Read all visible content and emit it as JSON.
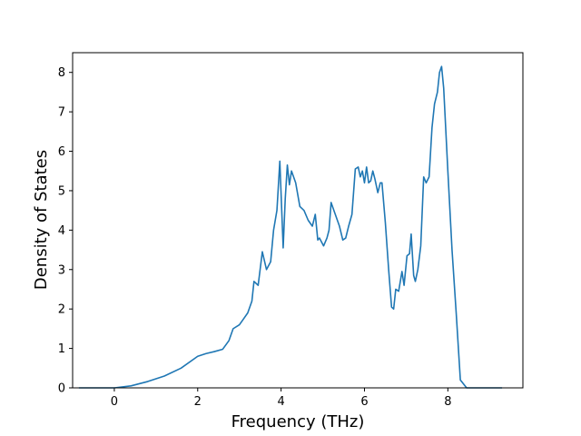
{
  "chart_data": {
    "type": "line",
    "title": "",
    "xlabel": "Frequency (THz)",
    "ylabel": "Density of States",
    "xlim": [
      -1.0,
      9.8
    ],
    "ylim": [
      0,
      8.5
    ],
    "xticks": [
      0,
      2,
      4,
      6,
      8
    ],
    "yticks": [
      0,
      1,
      2,
      3,
      4,
      5,
      6,
      7,
      8
    ],
    "grid": false,
    "legend": "none",
    "series": [
      {
        "color": "#1f77b4",
        "x": [
          -0.85,
          0.0,
          0.4,
          0.8,
          1.2,
          1.6,
          2.0,
          2.2,
          2.4,
          2.6,
          2.75,
          2.85,
          3.0,
          3.1,
          3.2,
          3.3,
          3.35,
          3.45,
          3.55,
          3.65,
          3.75,
          3.82,
          3.9,
          3.97,
          4.05,
          4.1,
          4.15,
          4.2,
          4.25,
          4.35,
          4.45,
          4.55,
          4.65,
          4.75,
          4.82,
          4.88,
          4.92,
          5.02,
          5.1,
          5.15,
          5.2,
          5.3,
          5.4,
          5.48,
          5.55,
          5.62,
          5.7,
          5.78,
          5.85,
          5.9,
          5.95,
          6.0,
          6.05,
          6.1,
          6.15,
          6.2,
          6.25,
          6.32,
          6.38,
          6.42,
          6.5,
          6.58,
          6.65,
          6.7,
          6.75,
          6.82,
          6.9,
          6.95,
          7.02,
          7.08,
          7.12,
          7.18,
          7.22,
          7.28,
          7.35,
          7.42,
          7.48,
          7.55,
          7.62,
          7.68,
          7.75,
          7.8,
          7.85,
          7.9,
          8.0,
          8.1,
          8.2,
          8.3,
          8.45,
          8.6,
          9.3
        ],
        "y": [
          0.0,
          0.0,
          0.05,
          0.16,
          0.3,
          0.5,
          0.8,
          0.87,
          0.92,
          0.98,
          1.2,
          1.5,
          1.6,
          1.75,
          1.9,
          2.2,
          2.7,
          2.6,
          3.45,
          3.0,
          3.2,
          4.0,
          4.5,
          5.75,
          3.55,
          4.8,
          5.65,
          5.15,
          5.5,
          5.2,
          4.6,
          4.5,
          4.25,
          4.1,
          4.4,
          3.75,
          3.8,
          3.6,
          3.8,
          4.0,
          4.7,
          4.4,
          4.1,
          3.75,
          3.8,
          4.1,
          4.4,
          5.55,
          5.6,
          5.35,
          5.5,
          5.2,
          5.6,
          5.2,
          5.25,
          5.5,
          5.3,
          4.95,
          5.2,
          5.2,
          4.2,
          3.0,
          2.05,
          2.0,
          2.5,
          2.45,
          2.95,
          2.6,
          3.35,
          3.4,
          3.9,
          2.85,
          2.7,
          3.0,
          3.6,
          5.35,
          5.2,
          5.35,
          6.6,
          7.2,
          7.5,
          8.0,
          8.15,
          7.6,
          5.5,
          3.5,
          1.9,
          0.2,
          0.0,
          0.0,
          0.0
        ]
      }
    ]
  }
}
